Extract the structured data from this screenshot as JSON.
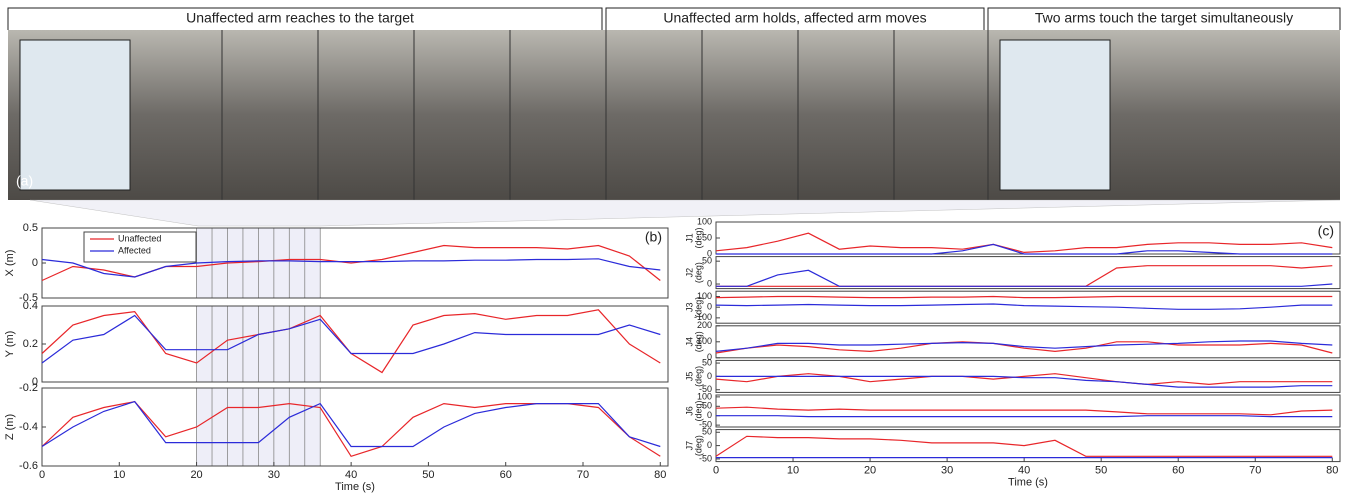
{
  "photo": {
    "label": "(a)",
    "captions": [
      "Unaffected arm reaches to the target",
      "Unaffected arm holds, affected arm moves",
      "Two arms touch the target simultaneously"
    ]
  },
  "chart_data": [
    {
      "type": "line",
      "panel_label": "(b)",
      "ylabel": "X (m)",
      "xlim": [
        0,
        81
      ],
      "ylim": [
        -0.5,
        0.5
      ],
      "yticks": [
        -0.5,
        0,
        0.5
      ],
      "shade_lines": [
        20,
        22,
        24,
        26,
        28,
        30,
        32,
        34,
        36
      ],
      "x": [
        0,
        4,
        8,
        12,
        16,
        20,
        24,
        28,
        32,
        36,
        40,
        44,
        48,
        52,
        56,
        60,
        64,
        68,
        72,
        76,
        80
      ],
      "series": [
        {
          "name": "Unaffected",
          "color": "#e8262a",
          "values": [
            -0.25,
            -0.05,
            -0.1,
            -0.2,
            -0.05,
            -0.05,
            0.0,
            0.02,
            0.05,
            0.05,
            0.0,
            0.05,
            0.15,
            0.25,
            0.22,
            0.22,
            0.22,
            0.2,
            0.25,
            0.1,
            -0.25
          ]
        },
        {
          "name": "Affected",
          "color": "#2b2bd9",
          "values": [
            0.05,
            0.0,
            -0.15,
            -0.2,
            -0.05,
            0.0,
            0.02,
            0.03,
            0.03,
            0.02,
            0.02,
            0.02,
            0.03,
            0.03,
            0.04,
            0.04,
            0.05,
            0.05,
            0.06,
            -0.05,
            -0.1
          ]
        }
      ]
    },
    {
      "type": "line",
      "ylabel": "Y (m)",
      "xlim": [
        0,
        81
      ],
      "ylim": [
        0,
        0.4
      ],
      "yticks": [
        0,
        0.2,
        0.4
      ],
      "shade_lines": [
        20,
        22,
        24,
        26,
        28,
        30,
        32,
        34,
        36
      ],
      "x": [
        0,
        4,
        8,
        12,
        16,
        20,
        24,
        28,
        32,
        36,
        40,
        44,
        48,
        52,
        56,
        60,
        64,
        68,
        72,
        76,
        80
      ],
      "series": [
        {
          "color": "#e8262a",
          "values": [
            0.15,
            0.3,
            0.35,
            0.37,
            0.15,
            0.1,
            0.22,
            0.25,
            0.28,
            0.35,
            0.15,
            0.05,
            0.3,
            0.35,
            0.36,
            0.33,
            0.35,
            0.35,
            0.38,
            0.2,
            0.1
          ]
        },
        {
          "color": "#2b2bd9",
          "values": [
            0.1,
            0.22,
            0.25,
            0.35,
            0.17,
            0.17,
            0.17,
            0.25,
            0.28,
            0.33,
            0.15,
            0.15,
            0.15,
            0.2,
            0.26,
            0.25,
            0.25,
            0.25,
            0.25,
            0.3,
            0.25
          ]
        }
      ]
    },
    {
      "type": "line",
      "ylabel": "Z (m)",
      "xlabel": "Time (s)",
      "xlim": [
        0,
        81
      ],
      "ylim": [
        -0.6,
        -0.2
      ],
      "yticks": [
        -0.6,
        -0.4,
        -0.2
      ],
      "xticks": [
        0,
        10,
        20,
        30,
        40,
        50,
        60,
        70,
        80
      ],
      "shade_lines": [
        20,
        22,
        24,
        26,
        28,
        30,
        32,
        34,
        36
      ],
      "x": [
        0,
        4,
        8,
        12,
        16,
        20,
        24,
        28,
        32,
        36,
        40,
        44,
        48,
        52,
        56,
        60,
        64,
        68,
        72,
        76,
        80
      ],
      "series": [
        {
          "color": "#e8262a",
          "values": [
            -0.5,
            -0.35,
            -0.3,
            -0.27,
            -0.45,
            -0.4,
            -0.3,
            -0.3,
            -0.28,
            -0.3,
            -0.55,
            -0.5,
            -0.35,
            -0.28,
            -0.3,
            -0.28,
            -0.28,
            -0.28,
            -0.3,
            -0.45,
            -0.55
          ]
        },
        {
          "color": "#2b2bd9",
          "values": [
            -0.5,
            -0.4,
            -0.32,
            -0.27,
            -0.48,
            -0.48,
            -0.48,
            -0.48,
            -0.35,
            -0.28,
            -0.5,
            -0.5,
            -0.5,
            -0.4,
            -0.33,
            -0.3,
            -0.28,
            -0.28,
            -0.28,
            -0.45,
            -0.5
          ]
        }
      ]
    },
    {
      "type": "line",
      "panel_label": "(c)",
      "ylabel": "J1",
      "yunit": "(deg)",
      "xlim": [
        0,
        81
      ],
      "ylim": [
        0,
        100
      ],
      "yticks": [
        0,
        50,
        100
      ],
      "x": [
        0,
        4,
        8,
        12,
        16,
        20,
        24,
        28,
        32,
        36,
        40,
        44,
        48,
        52,
        56,
        60,
        64,
        68,
        72,
        76,
        80
      ],
      "series": [
        {
          "color": "#e8262a",
          "values": [
            10,
            20,
            40,
            65,
            15,
            25,
            20,
            20,
            15,
            30,
            5,
            10,
            20,
            20,
            30,
            35,
            35,
            30,
            30,
            35,
            20
          ]
        },
        {
          "color": "#2b2bd9",
          "values": [
            0,
            0,
            0,
            0,
            0,
            0,
            0,
            0,
            10,
            30,
            0,
            0,
            0,
            0,
            10,
            10,
            5,
            0,
            0,
            0,
            0
          ]
        }
      ]
    },
    {
      "type": "line",
      "ylabel": "J2",
      "yunit": "(deg)",
      "xlim": [
        0,
        81
      ],
      "ylim": [
        -10,
        60
      ],
      "yticks": [
        0,
        50
      ],
      "x": [
        0,
        4,
        8,
        12,
        16,
        20,
        24,
        28,
        32,
        36,
        40,
        44,
        48,
        52,
        56,
        60,
        64,
        68,
        72,
        76,
        80
      ],
      "series": [
        {
          "color": "#e8262a",
          "values": [
            -5,
            -5,
            -5,
            -5,
            -5,
            -5,
            -5,
            -5,
            -5,
            -5,
            -5,
            -5,
            -5,
            35,
            40,
            40,
            40,
            40,
            40,
            35,
            40
          ]
        },
        {
          "color": "#2b2bd9",
          "values": [
            -5,
            -5,
            20,
            30,
            -5,
            -5,
            -5,
            -5,
            -5,
            -5,
            -5,
            -5,
            -5,
            -5,
            -5,
            -5,
            -5,
            -5,
            -5,
            -5,
            0
          ]
        }
      ]
    },
    {
      "type": "line",
      "ylabel": "J3",
      "yunit": "(deg)",
      "xlim": [
        0,
        81
      ],
      "ylim": [
        -150,
        150
      ],
      "yticks": [
        -100,
        0,
        100
      ],
      "x": [
        0,
        4,
        8,
        12,
        16,
        20,
        24,
        28,
        32,
        36,
        40,
        44,
        48,
        52,
        56,
        60,
        64,
        68,
        72,
        76,
        80
      ],
      "series": [
        {
          "color": "#e8262a",
          "values": [
            90,
            95,
            100,
            100,
            95,
            90,
            90,
            95,
            95,
            100,
            90,
            90,
            95,
            100,
            100,
            100,
            100,
            100,
            100,
            100,
            100
          ]
        },
        {
          "color": "#2b2bd9",
          "values": [
            20,
            15,
            20,
            25,
            20,
            15,
            15,
            20,
            25,
            30,
            15,
            10,
            5,
            0,
            -10,
            -20,
            -20,
            -15,
            0,
            20,
            20
          ]
        }
      ]
    },
    {
      "type": "line",
      "ylabel": "J4",
      "yunit": "(deg)",
      "xlim": [
        0,
        81
      ],
      "ylim": [
        0,
        200
      ],
      "yticks": [
        0,
        100,
        200
      ],
      "x": [
        0,
        4,
        8,
        12,
        16,
        20,
        24,
        28,
        32,
        36,
        40,
        44,
        48,
        52,
        56,
        60,
        64,
        68,
        72,
        76,
        80
      ],
      "series": [
        {
          "color": "#e8262a",
          "values": [
            30,
            60,
            80,
            70,
            50,
            40,
            60,
            90,
            100,
            90,
            60,
            40,
            60,
            100,
            100,
            80,
            80,
            80,
            90,
            80,
            30
          ]
        },
        {
          "color": "#2b2bd9",
          "values": [
            40,
            60,
            90,
            90,
            80,
            80,
            85,
            90,
            95,
            90,
            70,
            60,
            70,
            80,
            85,
            90,
            100,
            105,
            105,
            90,
            80
          ]
        }
      ]
    },
    {
      "type": "line",
      "ylabel": "J5",
      "yunit": "(deg)",
      "xlim": [
        0,
        81
      ],
      "ylim": [
        -60,
        60
      ],
      "yticks": [
        -50,
        0,
        50
      ],
      "x": [
        0,
        4,
        8,
        12,
        16,
        20,
        24,
        28,
        32,
        36,
        40,
        44,
        48,
        52,
        56,
        60,
        64,
        68,
        72,
        76,
        80
      ],
      "series": [
        {
          "color": "#e8262a",
          "values": [
            -10,
            -20,
            0,
            10,
            0,
            -20,
            -10,
            0,
            0,
            -10,
            0,
            10,
            -5,
            -20,
            -30,
            -20,
            -30,
            -20,
            -20,
            -20,
            -20
          ]
        },
        {
          "color": "#2b2bd9",
          "values": [
            0,
            0,
            0,
            0,
            0,
            0,
            0,
            0,
            0,
            0,
            -5,
            -5,
            -15,
            -20,
            -30,
            -40,
            -40,
            -40,
            -40,
            -35,
            -35
          ]
        }
      ]
    },
    {
      "type": "line",
      "ylabel": "J6",
      "yunit": "(deg)",
      "xlim": [
        0,
        81
      ],
      "ylim": [
        -60,
        110
      ],
      "yticks": [
        -50,
        0,
        50,
        100
      ],
      "x": [
        0,
        4,
        8,
        12,
        16,
        20,
        24,
        28,
        32,
        36,
        40,
        44,
        48,
        52,
        56,
        60,
        64,
        68,
        72,
        76,
        80
      ],
      "series": [
        {
          "color": "#e8262a",
          "values": [
            40,
            45,
            35,
            30,
            35,
            30,
            30,
            30,
            30,
            30,
            30,
            30,
            30,
            20,
            10,
            10,
            10,
            10,
            5,
            25,
            30
          ]
        },
        {
          "color": "#2b2bd9",
          "values": [
            0,
            0,
            0,
            -5,
            -5,
            -5,
            -5,
            -5,
            -5,
            -5,
            -5,
            -5,
            -5,
            -5,
            0,
            0,
            0,
            0,
            -5,
            -5,
            -5
          ]
        }
      ]
    },
    {
      "type": "line",
      "ylabel": "J7",
      "yunit": "(deg)",
      "xlabel": "Time (s)",
      "xlim": [
        0,
        81
      ],
      "ylim": [
        -60,
        60
      ],
      "yticks": [
        -50,
        0,
        50
      ],
      "xticks": [
        0,
        10,
        20,
        30,
        40,
        50,
        60,
        70,
        80
      ],
      "x": [
        0,
        4,
        8,
        12,
        16,
        20,
        24,
        28,
        32,
        36,
        40,
        44,
        48,
        52,
        56,
        60,
        64,
        68,
        72,
        76,
        80
      ],
      "series": [
        {
          "color": "#e8262a",
          "values": [
            -40,
            35,
            30,
            30,
            25,
            25,
            20,
            10,
            10,
            10,
            0,
            20,
            -40,
            -40,
            -40,
            -40,
            -40,
            -40,
            -40,
            -40,
            -40
          ]
        },
        {
          "color": "#2b2bd9",
          "values": [
            -45,
            -45,
            -45,
            -45,
            -45,
            -45,
            -45,
            -45,
            -45,
            -45,
            -45,
            -45,
            -45,
            -45,
            -45,
            -45,
            -45,
            -45,
            -45,
            -45,
            -45
          ]
        }
      ]
    }
  ]
}
